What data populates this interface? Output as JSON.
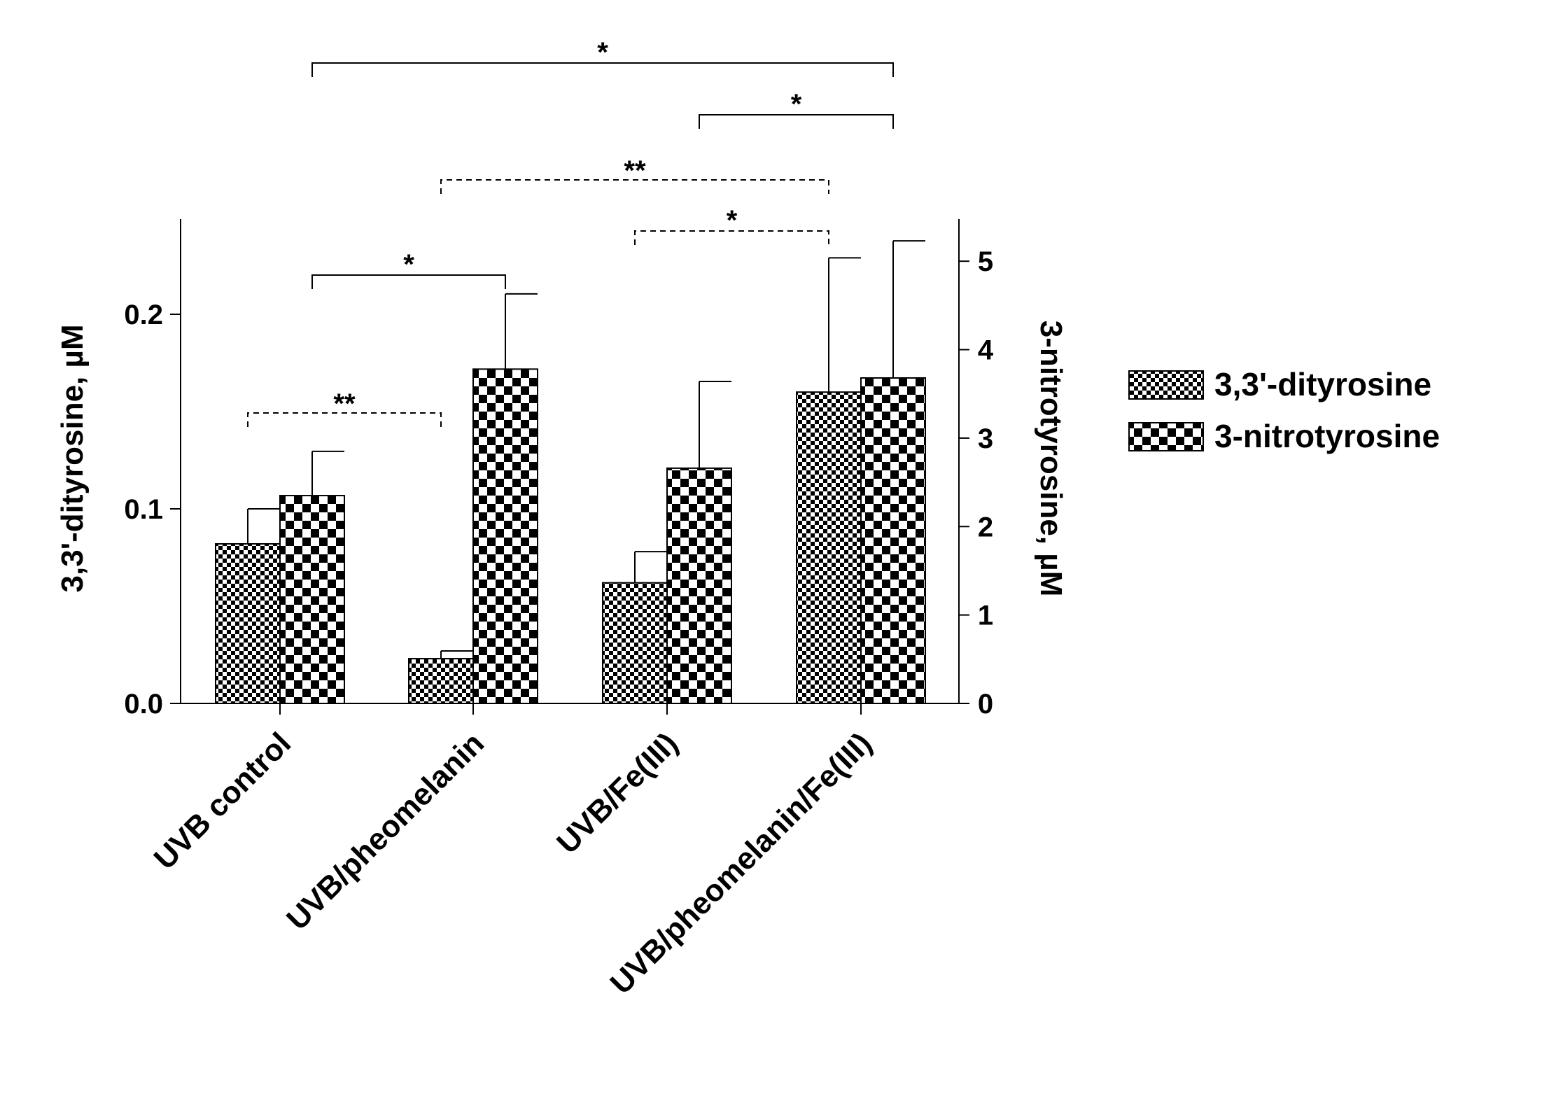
{
  "chart_data": {
    "type": "bar",
    "categories": [
      "UVB control",
      "UVB/pheomelanin",
      "UVB/Fe(III)",
      "UVB/pheomelanin/Fe(III)"
    ],
    "series": [
      {
        "name": "3,3'-dityrosine",
        "axis": "left",
        "unit": "µM",
        "values": [
          0.082,
          0.023,
          0.062,
          0.16
        ],
        "errors": [
          0.018,
          0.004,
          0.016,
          0.069
        ],
        "pattern": "fine-checker"
      },
      {
        "name": "3-nitrotyrosine",
        "axis": "right",
        "unit": "µM",
        "values": [
          2.35,
          3.78,
          2.66,
          3.68
        ],
        "errors": [
          0.5,
          0.85,
          0.98,
          1.55
        ],
        "pattern": "coarse-checker"
      }
    ],
    "y_left": {
      "label": "3,3'-dityrosine,  µM",
      "ylim": [
        0,
        0.25
      ],
      "ticks": [
        0.0,
        0.1,
        0.2
      ],
      "tick_labels": [
        "0.0",
        "0.1",
        "0.2"
      ]
    },
    "y_right": {
      "label": "3-nitrotyrosine,  µM",
      "ylim": [
        0,
        5.5
      ],
      "ticks": [
        0,
        1,
        2,
        3,
        4,
        5
      ],
      "tick_labels": [
        "0",
        "1",
        "2",
        "3",
        "4",
        "5"
      ]
    },
    "legend": {
      "position": "right",
      "entries": [
        "3,3'-dityrosine",
        "3-nitrotyrosine"
      ]
    },
    "significance": [
      {
        "from": {
          "category": 0,
          "series": 0
        },
        "to": {
          "category": 1,
          "series": 0
        },
        "label": "**",
        "style": "dashed",
        "level": 1
      },
      {
        "from": {
          "category": 0,
          "series": 1
        },
        "to": {
          "category": 1,
          "series": 1
        },
        "label": "*",
        "style": "solid",
        "level": 2
      },
      {
        "from": {
          "category": 2,
          "series": 0
        },
        "to": {
          "category": 3,
          "series": 0
        },
        "label": "*",
        "style": "dashed",
        "level": 3
      },
      {
        "from": {
          "category": 1,
          "series": 0
        },
        "to": {
          "category": 3,
          "series": 0
        },
        "label": "**",
        "style": "dashed",
        "level": 4
      },
      {
        "from": {
          "category": 2,
          "series": 1
        },
        "to": {
          "category": 3,
          "series": 1
        },
        "label": "*",
        "style": "solid",
        "level": 5
      },
      {
        "from": {
          "category": 0,
          "series": 1
        },
        "to": {
          "category": 3,
          "series": 1
        },
        "label": "*",
        "style": "solid",
        "level": 6
      }
    ]
  }
}
